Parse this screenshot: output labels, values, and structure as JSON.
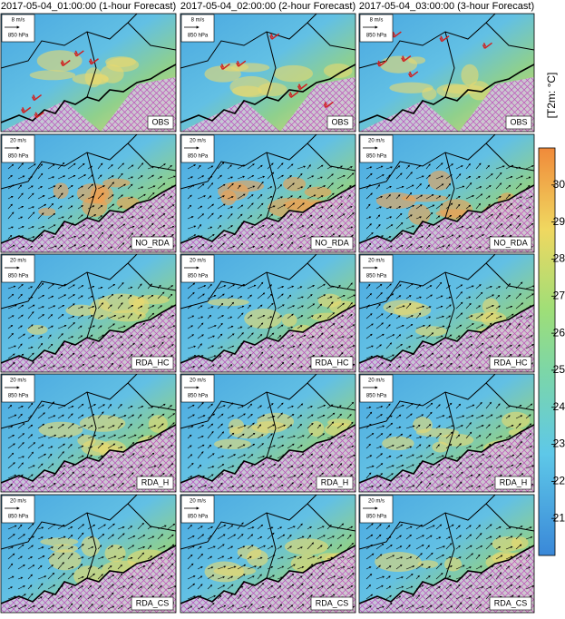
{
  "column_titles": [
    "2017-05-04_01:00:00 (1-hour Forecast)",
    "2017-05-04_02:00:00 (2-hour Forecast)",
    "2017-05-04_03:00:00 (3-hour Forecast)"
  ],
  "rows": [
    {
      "label": "OBS",
      "ref_speed": "8 m/s",
      "level": "850 hPa"
    },
    {
      "label": "NO_RDA",
      "ref_speed": "20 m/s",
      "level": "850 hPa"
    },
    {
      "label": "RDA_HC",
      "ref_speed": "20 m/s",
      "level": "850 hPa"
    },
    {
      "label": "RDA_H",
      "ref_speed": "20 m/s",
      "level": "850 hPa"
    },
    {
      "label": "RDA_CS",
      "ref_speed": "20 m/s",
      "level": "850 hPa"
    }
  ],
  "colorbar": {
    "label": "[T2m: °C]",
    "range": [
      20,
      31
    ],
    "ticks": [
      21,
      22,
      23,
      24,
      25,
      26,
      27,
      28,
      29,
      30
    ]
  }
}
